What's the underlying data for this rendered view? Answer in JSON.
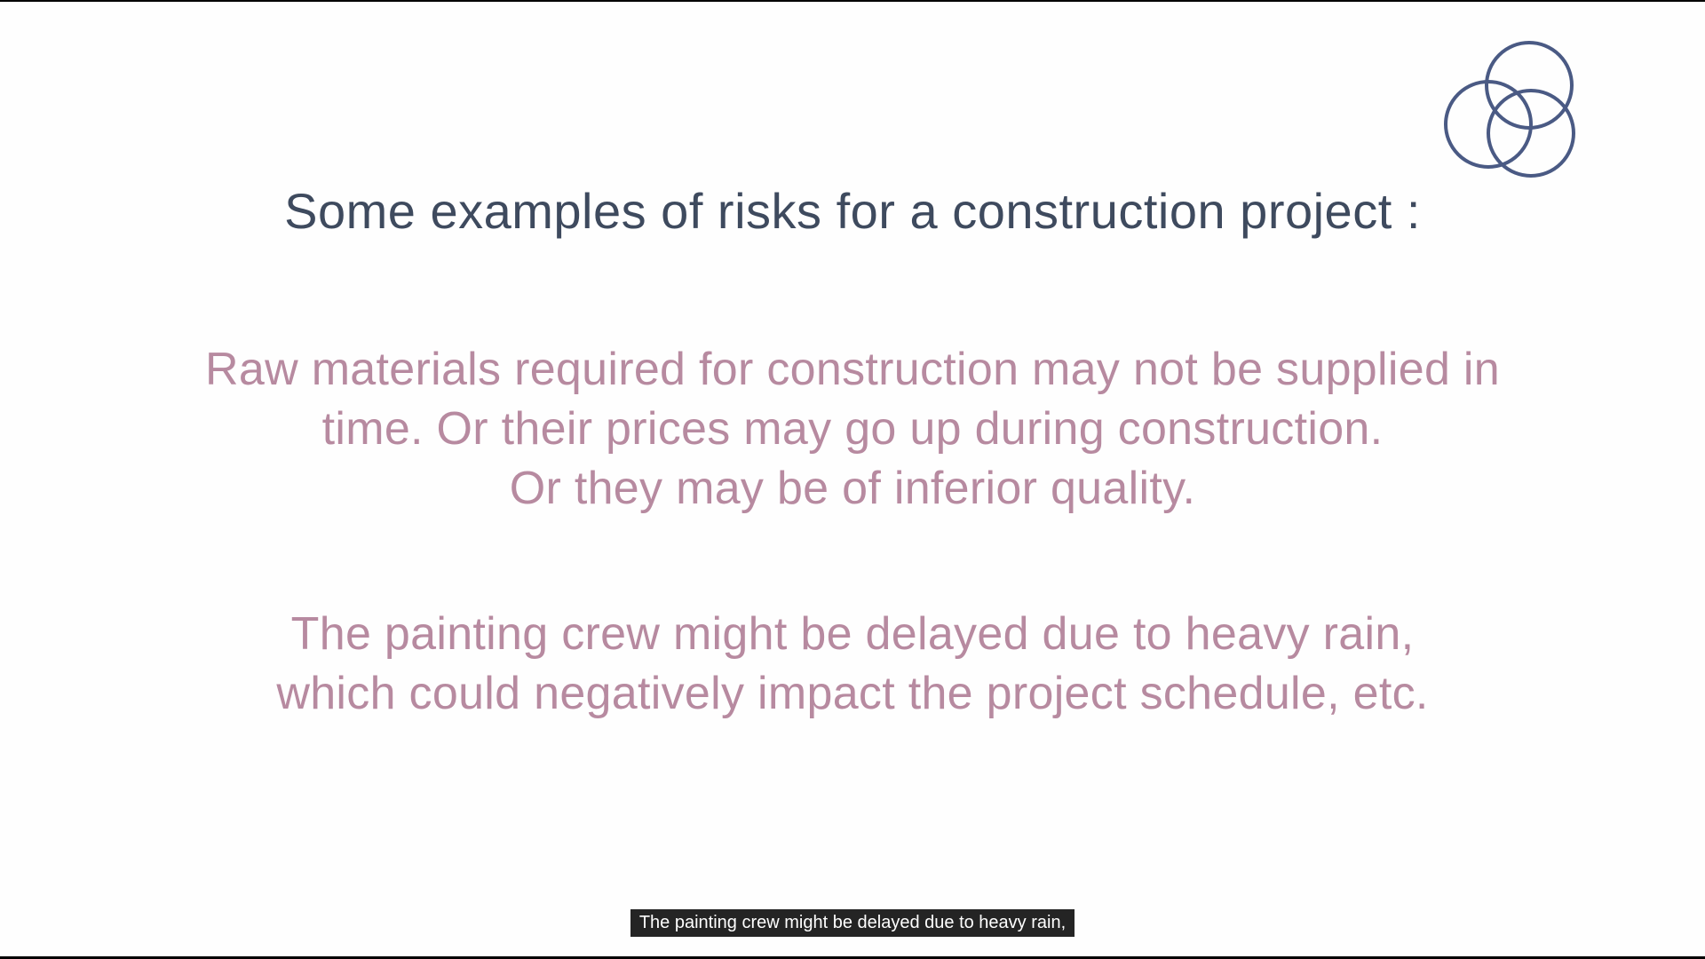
{
  "slide": {
    "logo_icon": "three-interlocking-circles-icon",
    "logo_color": "#4a5a84",
    "title": "Some examples of risks for a construction project :",
    "paragraphs": [
      {
        "lines": [
          "Raw materials required for construction may not be supplied in",
          "time. Or their prices may go up during construction.",
          "Or they may be of inferior quality."
        ]
      },
      {
        "lines": [
          "The painting crew might be delayed due to heavy rain,",
          "which could negatively impact the project schedule, etc."
        ]
      }
    ]
  },
  "subtitles": {
    "caption": "The painting crew might be delayed due to heavy rain,"
  },
  "colors": {
    "title": "#3e4a5e",
    "body": "#b78aa0",
    "background": "#fefefe"
  }
}
